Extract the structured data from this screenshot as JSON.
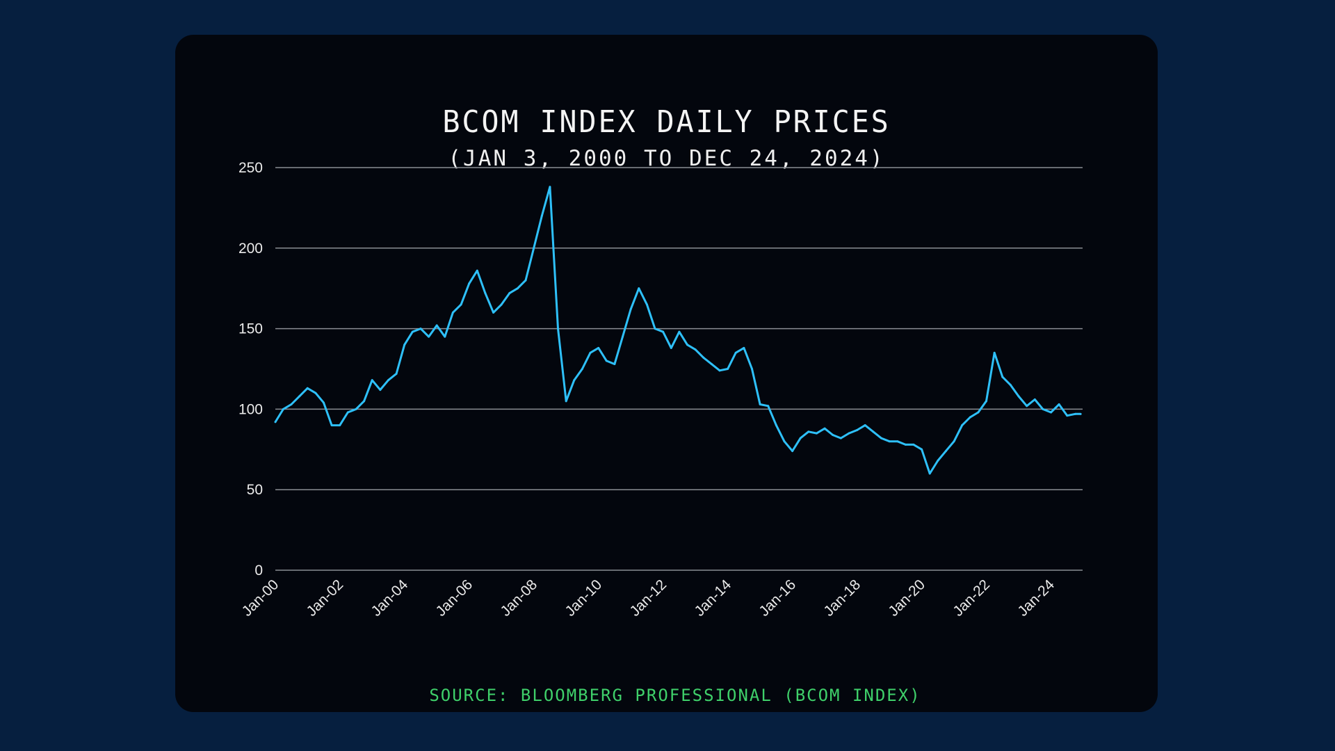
{
  "chart_data": {
    "type": "line",
    "title": "BCOM INDEX DAILY PRICES",
    "subtitle": "(JAN 3, 2000 TO DEC 24, 2024)",
    "source": "SOURCE: BLOOMBERG PROFESSIONAL (BCOM INDEX)",
    "xlabel": "",
    "ylabel": "",
    "ylim": [
      0,
      250
    ],
    "xlim": [
      "2000-01-03",
      "2024-12-24"
    ],
    "yticks": [
      "0",
      "50",
      "100",
      "150",
      "200",
      "250"
    ],
    "xticks": [
      "Jan-00",
      "Jan-02",
      "Jan-04",
      "Jan-06",
      "Jan-08",
      "Jan-10",
      "Jan-12",
      "Jan-14",
      "Jan-16",
      "Jan-18",
      "Jan-20",
      "Jan-22",
      "Jan-24"
    ],
    "grid": "horizontal",
    "line_color": "#2ec0f9",
    "series": [
      {
        "x": [
          "2000-01",
          "2000-04",
          "2000-07",
          "2000-10",
          "2001-01",
          "2001-04",
          "2001-07",
          "2001-10",
          "2002-01",
          "2002-04",
          "2002-07",
          "2002-10",
          "2003-01",
          "2003-04",
          "2003-07",
          "2003-10",
          "2004-01",
          "2004-04",
          "2004-07",
          "2004-10",
          "2005-01",
          "2005-04",
          "2005-07",
          "2005-10",
          "2006-01",
          "2006-04",
          "2006-07",
          "2006-10",
          "2007-01",
          "2007-04",
          "2007-07",
          "2007-10",
          "2008-01",
          "2008-04",
          "2008-07",
          "2008-10",
          "2009-01",
          "2009-04",
          "2009-07",
          "2009-10",
          "2010-01",
          "2010-04",
          "2010-07",
          "2010-10",
          "2011-01",
          "2011-04",
          "2011-07",
          "2011-10",
          "2012-01",
          "2012-04",
          "2012-07",
          "2012-10",
          "2013-01",
          "2013-04",
          "2013-07",
          "2013-10",
          "2014-01",
          "2014-04",
          "2014-07",
          "2014-10",
          "2015-01",
          "2015-04",
          "2015-07",
          "2015-10",
          "2016-01",
          "2016-04",
          "2016-07",
          "2016-10",
          "2017-01",
          "2017-04",
          "2017-07",
          "2017-10",
          "2018-01",
          "2018-04",
          "2018-07",
          "2018-10",
          "2019-01",
          "2019-04",
          "2019-07",
          "2019-10",
          "2020-01",
          "2020-04",
          "2020-07",
          "2020-10",
          "2021-01",
          "2021-04",
          "2021-07",
          "2021-10",
          "2022-01",
          "2022-04",
          "2022-07",
          "2022-10",
          "2023-01",
          "2023-04",
          "2023-07",
          "2023-10",
          "2024-01",
          "2024-04",
          "2024-07",
          "2024-10",
          "2024-12"
        ],
        "values": [
          92,
          100,
          103,
          108,
          113,
          110,
          104,
          90,
          90,
          98,
          100,
          105,
          118,
          112,
          118,
          122,
          140,
          148,
          150,
          145,
          152,
          145,
          160,
          165,
          178,
          186,
          172,
          160,
          165,
          172,
          175,
          180,
          200,
          220,
          238,
          150,
          105,
          118,
          125,
          135,
          138,
          130,
          128,
          145,
          162,
          175,
          165,
          150,
          148,
          138,
          148,
          140,
          137,
          132,
          128,
          124,
          125,
          135,
          138,
          125,
          103,
          102,
          90,
          80,
          74,
          82,
          86,
          85,
          88,
          84,
          82,
          85,
          87,
          90,
          86,
          82,
          80,
          80,
          78,
          78,
          75,
          60,
          68,
          74,
          80,
          90,
          95,
          98,
          105,
          135,
          120,
          115,
          108,
          102,
          106,
          100,
          98,
          103,
          96,
          97,
          97
        ]
      }
    ]
  }
}
